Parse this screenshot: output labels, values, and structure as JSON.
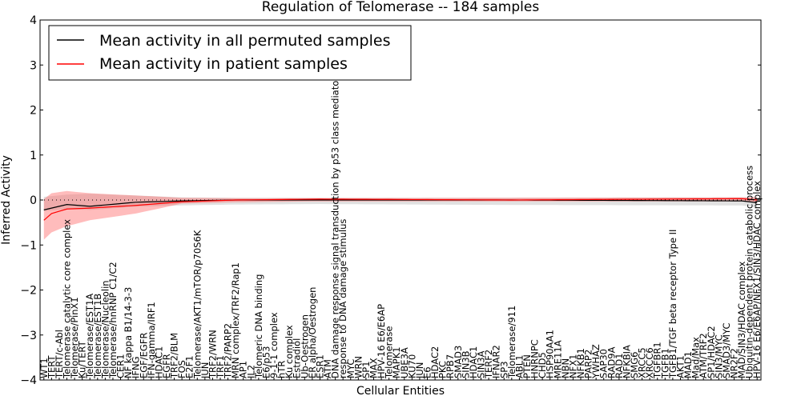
{
  "chart_data": {
    "type": "line",
    "title": "Regulation of Telomerase -- 184 samples",
    "xlabel": "Cellular Entities",
    "ylabel": "Inferred Activity",
    "ylim": [
      -4,
      4
    ],
    "yticks": [
      -4,
      -3,
      -2,
      -1,
      0,
      1,
      2,
      3,
      4
    ],
    "ytick_labels": [
      "−4",
      "−3",
      "−2",
      "−1",
      "0",
      "1",
      "2",
      "3",
      "4"
    ],
    "legend": {
      "placement": "top-left",
      "entries": [
        {
          "label": "Mean activity in all permuted samples",
          "color": "#000000"
        },
        {
          "label": "Mean activity in patient samples",
          "color": "#ff0000"
        }
      ]
    },
    "entities": [
      "WT1",
      "TERT",
      "TERT/c-Abl",
      "Telomerase catalytic core complex",
      "Telomerase/PinX1",
      "Ku/TERT",
      "Telomerase/EST1A",
      "Telomerase/EST1B",
      "Telomerase/Nucleolin",
      "Telomerase/hnRNP C1/C2",
      "CER1",
      "NF kappa B1/14-3-3",
      "IFNG",
      "EGF/EGFR",
      "IFN-gamma/IRF1",
      "HDAC1",
      "EGFR",
      "TRF2/BLM",
      "FOS",
      "E2F1",
      "Telomerase/AKT1/mTOR/p70S6K",
      "JUN",
      "TRF2/WRN",
      "TRF1",
      "TRF2/PARP2",
      "MRN complex/TRF2/Rap1",
      "AP1",
      "IL2",
      "Telomeric DNA binding",
      "E6/p53",
      "9-1-1 complex",
      "hTR",
      "Ku complex",
      "Estradiol",
      "Ub-Oestrogen",
      "ER alpha/Oestrogen",
      "ESR1",
      "ATM",
      "DNA damage response signal transduction by p53 class mediator",
      "response to DNA damage stimulus",
      "MYC",
      "WRN",
      "SP1",
      "MAX",
      "HPV-16 E6/E6AP",
      "Telomerase",
      "MAPK1",
      "UBE3A",
      "KU70",
      "JUN",
      "E6",
      "HDAC2",
      "PKC",
      "RPB7",
      "SMAD3",
      "SIN3B",
      "HDAC1",
      "SIN3A",
      "TERF2",
      "IFNAR2",
      "SP3",
      "Telomerase/911",
      "ABL1",
      "PTEN",
      "HNRNPC",
      "CHD5",
      "HSP90AA1",
      "MRE11A",
      "NBN",
      "NFX1",
      "NFKB1",
      "PARP2",
      "YWHAZ",
      "SAP30",
      "RAD9A",
      "RAD1",
      "NFKBIA",
      "SMG6",
      "XRCC5",
      "XRCC6",
      "TGFBR1",
      "TGFB1",
      "TGFB1/TGF beta receptor Type II",
      "AKT1",
      "MAD1",
      "Mad/Max",
      "ATM/TRF2",
      "SP1/HDAC2",
      "SIN3/MYC",
      "SMAD3/MYC",
      "NR2F2",
      "MAD/SIN3/HDAC complex",
      "Ubiquitin-dependent protein catabolic process",
      "HPV-16 E6/E6AP/NFX1/SIN3/HDAC complex"
    ],
    "series": [
      {
        "name": "Mean activity in all permuted samples",
        "color": "#000000",
        "knots_x_index": [
          0,
          3,
          6,
          12,
          18,
          25,
          36,
          61,
          91,
          93
        ],
        "mean": [
          -0.22,
          -0.1,
          -0.14,
          -0.05,
          -0.02,
          0.0,
          0.0,
          0.0,
          -0.02,
          -0.06
        ],
        "band_upper": [
          0.07,
          0.12,
          0.14,
          0.1,
          0.06,
          0.05,
          0.05,
          0.05,
          0.06,
          0.07
        ],
        "band_lower": [
          -0.25,
          -0.2,
          -0.22,
          -0.15,
          -0.12,
          -0.1,
          -0.09,
          -0.11,
          -0.12,
          -0.17
        ]
      },
      {
        "name": "Mean activity in patient samples",
        "color": "#ff0000",
        "knots_x_index": [
          0,
          1,
          3,
          6,
          12,
          18,
          25,
          36,
          61,
          91,
          93
        ],
        "mean": [
          -0.45,
          -0.3,
          -0.2,
          -0.18,
          -0.12,
          -0.04,
          0.0,
          0.02,
          0.0,
          0.03,
          0.0
        ],
        "band_upper": [
          0.02,
          0.15,
          0.2,
          0.15,
          0.1,
          0.05,
          0.04,
          0.04,
          0.05,
          0.06,
          0.06
        ],
        "band_lower": [
          -0.88,
          -0.72,
          -0.58,
          -0.45,
          -0.3,
          -0.08,
          -0.05,
          -0.03,
          -0.03,
          -0.03,
          -0.05
        ]
      }
    ]
  }
}
